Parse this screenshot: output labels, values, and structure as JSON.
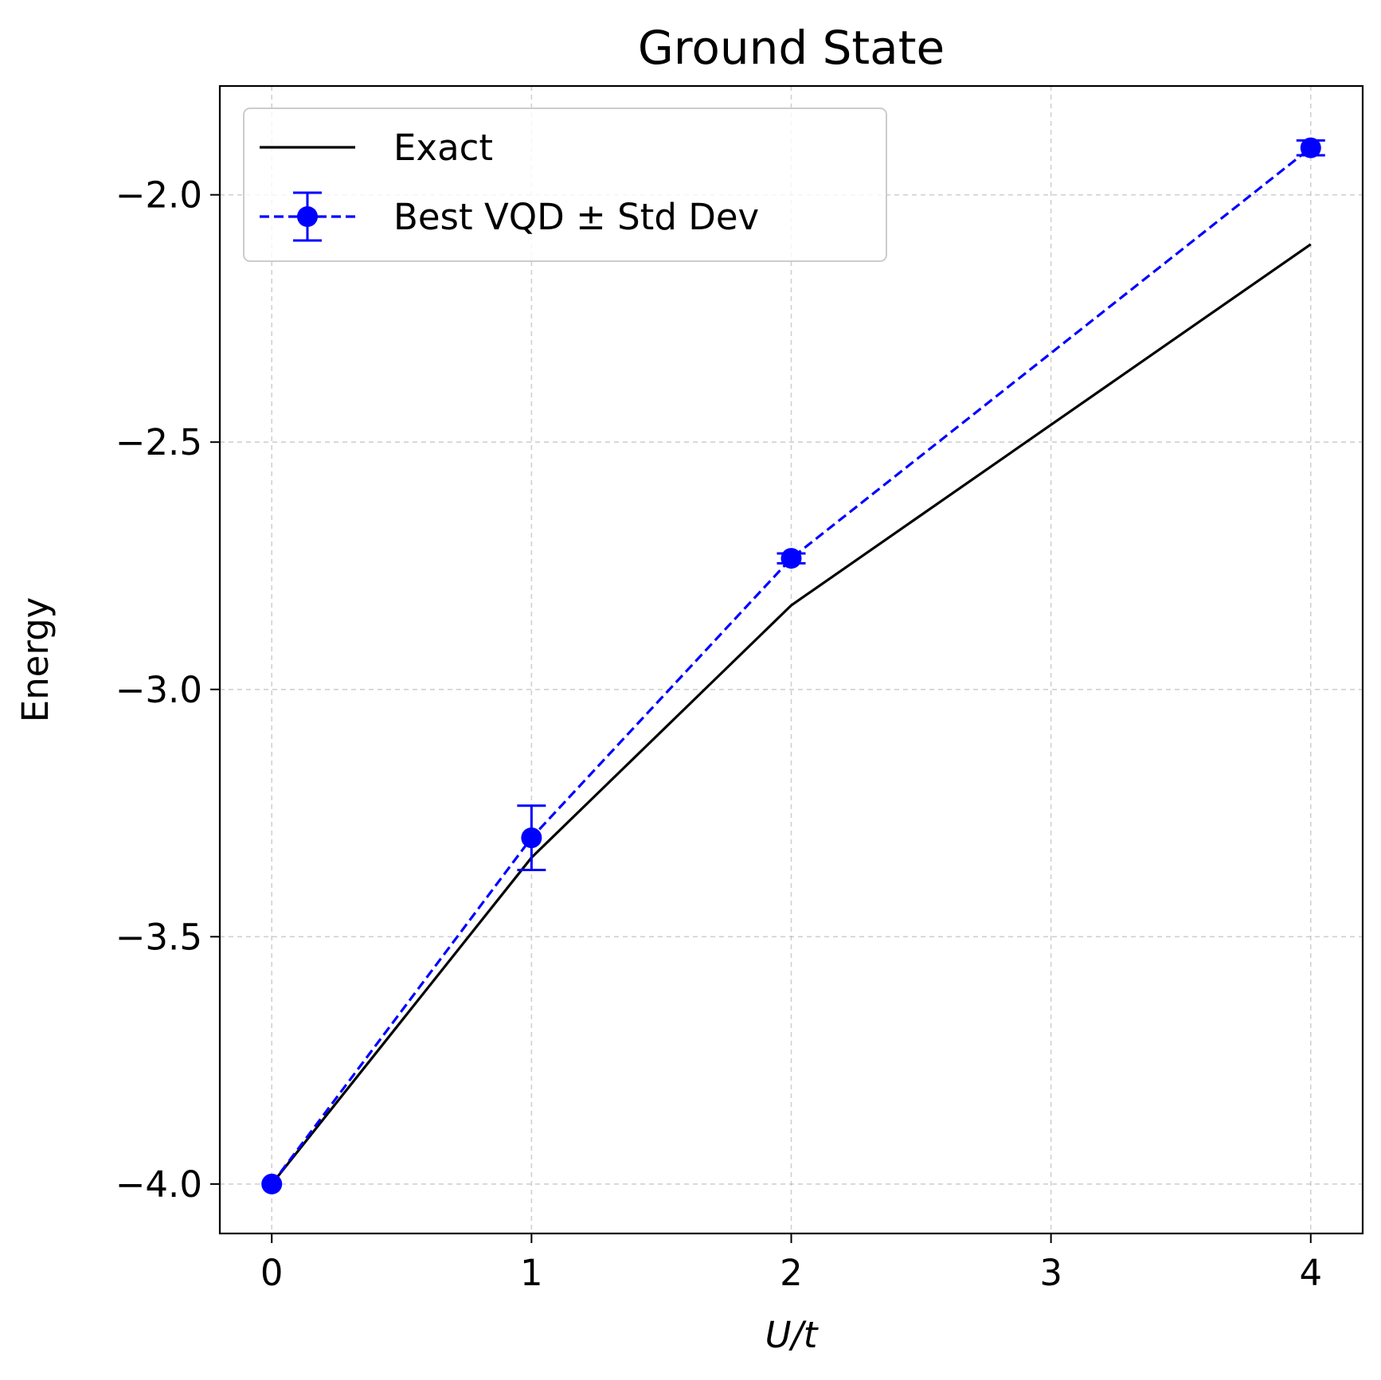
{
  "chart_data": {
    "type": "line",
    "title": "Ground State",
    "xlabel": "U/t",
    "ylabel": "Energy",
    "xlim": [
      -0.2,
      4.2
    ],
    "ylim": [
      -4.1,
      -1.78
    ],
    "xticks": [
      0,
      1,
      2,
      3,
      4
    ],
    "xtick_labels": [
      "0",
      "1",
      "2",
      "3",
      "4"
    ],
    "yticks": [
      -4.0,
      -3.5,
      -3.0,
      -2.5,
      -2.0
    ],
    "ytick_labels": [
      "−4.0",
      "−3.5",
      "−3.0",
      "−2.5",
      "−2.0"
    ],
    "grid": true,
    "legend_position": "top-left",
    "series": [
      {
        "name": "Exact",
        "style": "solid",
        "color": "#000000",
        "x": [
          0,
          1,
          2,
          4
        ],
        "y": [
          -4.0,
          -3.34,
          -2.83,
          -2.1
        ]
      },
      {
        "name": "Best VQD ± Std Dev",
        "style": "dashed",
        "marker": "circle",
        "color": "#0000ff",
        "x": [
          0,
          1,
          2,
          4
        ],
        "y": [
          -4.0,
          -3.3,
          -2.735,
          -1.905
        ],
        "yerr": [
          0.0,
          0.065,
          0.01,
          0.015
        ]
      }
    ]
  }
}
